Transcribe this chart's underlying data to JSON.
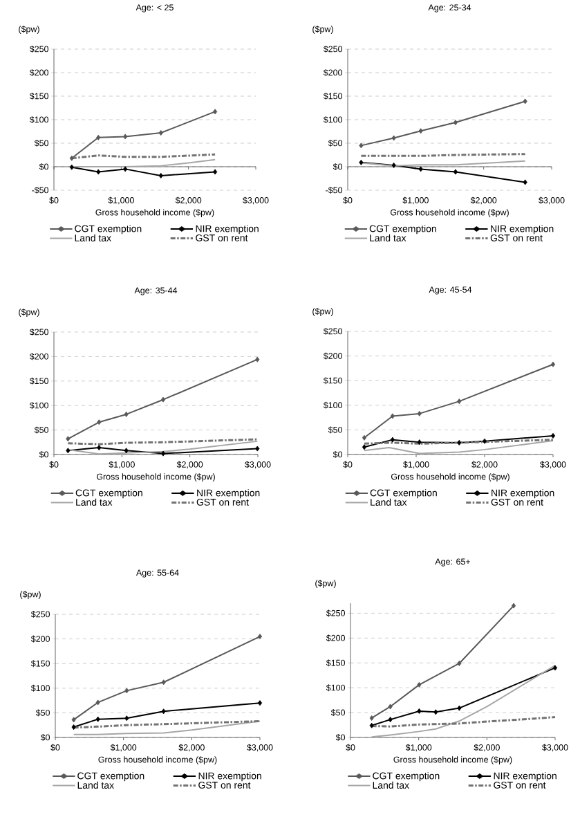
{
  "chart_data": [
    {
      "type": "line",
      "title": "Age: < 25",
      "ylabel": "($pw)",
      "xlabel": "Gross household income ($pw)",
      "xlim": [
        0,
        3000
      ],
      "xticks": [
        {
          "value": 0,
          "label": "$0"
        },
        {
          "value": 1000,
          "label": "$1,000"
        },
        {
          "value": 2000,
          "label": "$2,000"
        },
        {
          "value": 3000,
          "label": "$3,000"
        }
      ],
      "ylim": [
        -50,
        250
      ],
      "yticks": [
        {
          "value": -50,
          "label": "-$50"
        },
        {
          "value": 0,
          "label": "$0"
        },
        {
          "value": 50,
          "label": "$50"
        },
        {
          "value": 100,
          "label": "$100"
        },
        {
          "value": 150,
          "label": "$150"
        },
        {
          "value": 200,
          "label": "$200"
        },
        {
          "value": 250,
          "label": "$250"
        }
      ],
      "grid": "y",
      "legend": "bottom",
      "series": [
        {
          "name": "CGT exemption",
          "color": "#595959",
          "marker": "diamond",
          "line_style": "solid",
          "x": [
            265,
            660,
            1060,
            1590,
            2395
          ],
          "values": [
            18,
            62,
            64,
            72,
            117
          ]
        },
        {
          "name": "NIR exemption",
          "color": "#000000",
          "marker": "diamond",
          "line_style": "solid",
          "x": [
            265,
            660,
            1060,
            1590,
            2395
          ],
          "values": [
            -1,
            -11,
            -5,
            -19,
            -11
          ]
        },
        {
          "name": "Land tax",
          "color": "#a6a6a6",
          "marker": "none",
          "line_style": "solid",
          "x": [
            265,
            660,
            1060,
            1590,
            2000,
            2395
          ],
          "values": [
            0,
            0,
            0,
            2,
            8,
            15
          ]
        },
        {
          "name": "GST on rent",
          "color": "#737373",
          "marker": "none",
          "line_style": "dashed",
          "x": [
            265,
            660,
            1060,
            1590,
            2395
          ],
          "values": [
            18,
            24,
            21,
            21,
            26
          ]
        }
      ]
    },
    {
      "type": "line",
      "title": "Age: 25-34",
      "ylabel": "($pw)",
      "xlabel": "Gross household income ($pw)",
      "xlim": [
        0,
        3000
      ],
      "xticks": [
        {
          "value": 0,
          "label": "$0"
        },
        {
          "value": 1000,
          "label": "$1,000"
        },
        {
          "value": 2000,
          "label": "$2,000"
        },
        {
          "value": 3000,
          "label": "$3,000"
        }
      ],
      "ylim": [
        -50,
        250
      ],
      "yticks": [
        {
          "value": -50,
          "label": "-$50"
        },
        {
          "value": 0,
          "label": "$0"
        },
        {
          "value": 50,
          "label": "$50"
        },
        {
          "value": 100,
          "label": "$100"
        },
        {
          "value": 150,
          "label": "$150"
        },
        {
          "value": 200,
          "label": "$200"
        },
        {
          "value": 250,
          "label": "$250"
        }
      ],
      "grid": "y",
      "legend": "bottom",
      "series": [
        {
          "name": "CGT exemption",
          "color": "#595959",
          "marker": "diamond",
          "line_style": "solid",
          "x": [
            197,
            678,
            1074,
            1586,
            2610
          ],
          "values": [
            45,
            61,
            76,
            94,
            139
          ]
        },
        {
          "name": "NIR exemption",
          "color": "#000000",
          "marker": "diamond",
          "line_style": "solid",
          "x": [
            197,
            678,
            1074,
            1586,
            2610
          ],
          "values": [
            9,
            3,
            -5,
            -11,
            -33
          ]
        },
        {
          "name": "Land tax",
          "color": "#a6a6a6",
          "marker": "none",
          "line_style": "solid",
          "x": [
            197,
            678,
            1074,
            1586,
            2610
          ],
          "values": [
            8,
            2,
            4,
            4,
            12
          ]
        },
        {
          "name": "GST on rent",
          "color": "#737373",
          "marker": "none",
          "line_style": "dashed",
          "x": [
            197,
            678,
            1074,
            1586,
            2610
          ],
          "values": [
            23,
            23,
            23,
            25,
            27
          ]
        }
      ]
    },
    {
      "type": "line",
      "title": "Age: 35-44",
      "ylabel": "($pw)",
      "xlabel": "Gross household income ($pw)",
      "xlim": [
        0,
        3000
      ],
      "xticks": [
        {
          "value": 0,
          "label": "$0"
        },
        {
          "value": 1000,
          "label": "$1,000"
        },
        {
          "value": 2000,
          "label": "$2,000"
        },
        {
          "value": 3000,
          "label": "$3,000"
        }
      ],
      "ylim": [
        0,
        250
      ],
      "yticks": [
        {
          "value": 0,
          "label": "$0"
        },
        {
          "value": 50,
          "label": "$50"
        },
        {
          "value": 100,
          "label": "$100"
        },
        {
          "value": 150,
          "label": "$150"
        },
        {
          "value": 200,
          "label": "$200"
        },
        {
          "value": 250,
          "label": "$250"
        }
      ],
      "grid": "y",
      "legend": "bottom",
      "series": [
        {
          "name": "CGT exemption",
          "color": "#595959",
          "marker": "diamond",
          "line_style": "solid",
          "x": [
            207,
            664,
            1064,
            1607,
            2993
          ],
          "values": [
            32,
            66,
            82,
            112,
            194
          ]
        },
        {
          "name": "NIR exemption",
          "color": "#000000",
          "marker": "diamond",
          "line_style": "solid",
          "x": [
            207,
            664,
            1064,
            1607,
            2993
          ],
          "values": [
            8,
            14,
            8,
            2,
            12
          ]
        },
        {
          "name": "Land tax",
          "color": "#a6a6a6",
          "marker": "none",
          "line_style": "solid",
          "x": [
            207,
            664,
            1064,
            1607,
            2000,
            2993
          ],
          "values": [
            10,
            1,
            3,
            6,
            11,
            27
          ]
        },
        {
          "name": "GST on rent",
          "color": "#737373",
          "marker": "none",
          "line_style": "dashed",
          "x": [
            207,
            664,
            1064,
            1607,
            2993
          ],
          "values": [
            23,
            21,
            24,
            25,
            31
          ]
        }
      ]
    },
    {
      "type": "line",
      "title": "Age: 45-54",
      "ylabel": "($pw)",
      "xlabel": "Gross household income ($pw)",
      "xlim": [
        0,
        3000
      ],
      "xticks": [
        {
          "value": 0,
          "label": "$0"
        },
        {
          "value": 1000,
          "label": "$1,000"
        },
        {
          "value": 2000,
          "label": "$2,000"
        },
        {
          "value": 3000,
          "label": "$3,000"
        }
      ],
      "ylim": [
        0,
        250
      ],
      "yticks": [
        {
          "value": 0,
          "label": "$0"
        },
        {
          "value": 50,
          "label": "$50"
        },
        {
          "value": 100,
          "label": "$100"
        },
        {
          "value": 150,
          "label": "$150"
        },
        {
          "value": 200,
          "label": "$200"
        },
        {
          "value": 250,
          "label": "$250"
        }
      ],
      "grid": "y",
      "legend": "bottom",
      "series": [
        {
          "name": "CGT exemption",
          "color": "#595959",
          "marker": "diamond",
          "line_style": "solid",
          "x": [
            242,
            655,
            1048,
            1629,
            3000
          ],
          "values": [
            34,
            78,
            83,
            108,
            183
          ]
        },
        {
          "name": "NIR exemption",
          "color": "#000000",
          "marker": "diamond",
          "line_style": "solid",
          "x": [
            242,
            655,
            1048,
            1629,
            2000,
            3000
          ],
          "values": [
            15,
            30,
            25,
            24,
            27,
            38
          ]
        },
        {
          "name": "Land tax",
          "color": "#a6a6a6",
          "marker": "none",
          "line_style": "solid",
          "x": [
            242,
            605,
            1048,
            1629,
            2000,
            3000
          ],
          "values": [
            8,
            14,
            2,
            5,
            10,
            28
          ]
        },
        {
          "name": "GST on rent",
          "color": "#737373",
          "marker": "none",
          "line_style": "dashed",
          "x": [
            242,
            655,
            1048,
            1629,
            3000
          ],
          "values": [
            22,
            24,
            22,
            24,
            30
          ]
        }
      ]
    },
    {
      "type": "line",
      "title": "Age: 55-64",
      "ylabel": "($pw)",
      "xlabel": "Gross household income ($pw)",
      "xlim": [
        0,
        3000
      ],
      "xticks": [
        {
          "value": 0,
          "label": "$0"
        },
        {
          "value": 1000,
          "label": "$1,000"
        },
        {
          "value": 2000,
          "label": "$2,000"
        },
        {
          "value": 3000,
          "label": "$3,000"
        }
      ],
      "ylim": [
        0,
        250
      ],
      "yticks": [
        {
          "value": 0,
          "label": "$0"
        },
        {
          "value": 50,
          "label": "$50"
        },
        {
          "value": 100,
          "label": "$100"
        },
        {
          "value": 150,
          "label": "$150"
        },
        {
          "value": 200,
          "label": "$200"
        },
        {
          "value": 250,
          "label": "$250"
        }
      ],
      "grid": "y",
      "legend": "bottom",
      "series": [
        {
          "name": "CGT exemption",
          "color": "#595959",
          "marker": "diamond",
          "line_style": "solid",
          "x": [
            270,
            625,
            1047,
            1588,
            3000
          ],
          "values": [
            36,
            71,
            95,
            112,
            205
          ]
        },
        {
          "name": "NIR exemption",
          "color": "#000000",
          "marker": "diamond",
          "line_style": "solid",
          "x": [
            270,
            625,
            1047,
            1588,
            3000
          ],
          "values": [
            21,
            37,
            39,
            53,
            70
          ]
        },
        {
          "name": "Land tax",
          "color": "#a6a6a6",
          "marker": "none",
          "line_style": "solid",
          "x": [
            270,
            625,
            1047,
            1588,
            2000,
            3000
          ],
          "values": [
            6,
            6,
            8,
            9,
            15,
            33
          ]
        },
        {
          "name": "GST on rent",
          "color": "#737373",
          "marker": "none",
          "line_style": "dashed",
          "x": [
            270,
            625,
            1047,
            1588,
            3000
          ],
          "values": [
            20,
            22,
            25,
            27,
            33
          ]
        }
      ]
    },
    {
      "type": "line",
      "title": "Age: 65+",
      "ylabel": "($pw)",
      "xlabel": "Gross household income ($pw)",
      "xlim": [
        0,
        3000
      ],
      "xticks": [
        {
          "value": 0,
          "label": "$0"
        },
        {
          "value": 1000,
          "label": "$1,000"
        },
        {
          "value": 2000,
          "label": "$2,000"
        },
        {
          "value": 3000,
          "label": "$3,000"
        }
      ],
      "ylim": [
        0,
        270
      ],
      "yticks": [
        {
          "value": 0,
          "label": "$0"
        },
        {
          "value": 50,
          "label": "$50"
        },
        {
          "value": 100,
          "label": "$100"
        },
        {
          "value": 150,
          "label": "$150"
        },
        {
          "value": 200,
          "label": "$200"
        },
        {
          "value": 250,
          "label": "$250"
        }
      ],
      "grid": "y",
      "legend": "bottom",
      "series": [
        {
          "name": "CGT exemption",
          "color": "#595959",
          "marker": "diamond",
          "line_style": "solid",
          "x": [
            311,
            584,
            1007,
            1595,
            2392
          ],
          "values": [
            39,
            62,
            106,
            149,
            265
          ]
        },
        {
          "name": "NIR exemption",
          "color": "#000000",
          "marker": "diamond",
          "line_style": "solid",
          "x": [
            311,
            584,
            1007,
            1250,
            1595,
            3000
          ],
          "values": [
            24,
            36,
            53,
            51,
            59,
            140
          ]
        },
        {
          "name": "Land tax",
          "color": "#a6a6a6",
          "marker": "none",
          "line_style": "solid",
          "x": [
            311,
            584,
            1007,
            1250,
            1595,
            2000,
            3000
          ],
          "values": [
            1,
            5,
            12,
            17,
            33,
            62,
            145
          ]
        },
        {
          "name": "GST on rent",
          "color": "#737373",
          "marker": "none",
          "line_style": "dashed",
          "x": [
            311,
            584,
            1007,
            1595,
            2000,
            2600,
            3000
          ],
          "values": [
            23,
            22,
            26,
            28,
            32,
            37,
            41
          ]
        }
      ]
    }
  ]
}
